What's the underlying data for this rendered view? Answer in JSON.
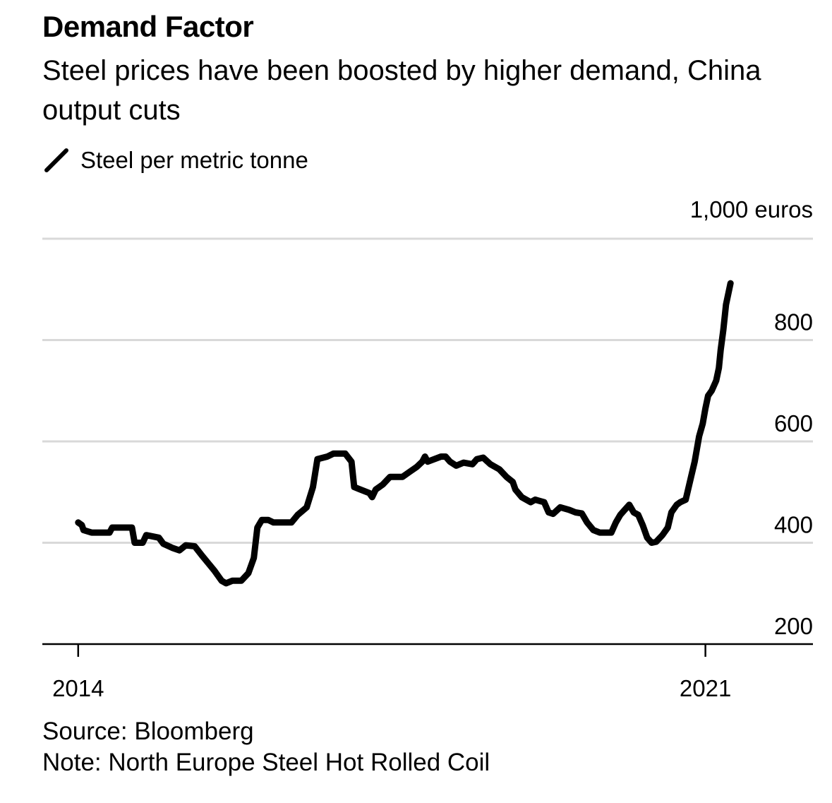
{
  "chart_data": {
    "type": "line",
    "title": "Demand Factor",
    "subtitle": "Steel prices have been boosted by higher demand, China output cuts",
    "legend": [
      "Steel per metric tonne"
    ],
    "xlabel": "",
    "ylabel": "",
    "unit_label": "1,000 euros",
    "yticks": [
      200,
      400,
      600,
      800,
      1000
    ],
    "ylim": [
      200,
      1000
    ],
    "xticks": [
      "2014",
      "2021"
    ],
    "xlim": [
      2013.6,
      2022.2
    ],
    "grid": true,
    "legend_position": "top-left",
    "series": [
      {
        "name": "Steel per metric tonne",
        "color": "#000000",
        "points": [
          [
            2014.0,
            440
          ],
          [
            2014.04,
            435
          ],
          [
            2014.06,
            425
          ],
          [
            2014.15,
            420
          ],
          [
            2014.35,
            420
          ],
          [
            2014.38,
            430
          ],
          [
            2014.6,
            430
          ],
          [
            2014.63,
            400
          ],
          [
            2014.72,
            400
          ],
          [
            2014.76,
            415
          ],
          [
            2014.9,
            410
          ],
          [
            2014.95,
            398
          ],
          [
            2015.05,
            390
          ],
          [
            2015.13,
            385
          ],
          [
            2015.2,
            395
          ],
          [
            2015.3,
            393
          ],
          [
            2015.38,
            375
          ],
          [
            2015.45,
            360
          ],
          [
            2015.52,
            345
          ],
          [
            2015.6,
            325
          ],
          [
            2015.65,
            320
          ],
          [
            2015.72,
            325
          ],
          [
            2015.82,
            325
          ],
          [
            2015.9,
            340
          ],
          [
            2015.96,
            370
          ],
          [
            2016.0,
            430
          ],
          [
            2016.05,
            445
          ],
          [
            2016.12,
            445
          ],
          [
            2016.18,
            440
          ],
          [
            2016.38,
            440
          ],
          [
            2016.45,
            455
          ],
          [
            2016.55,
            470
          ],
          [
            2016.62,
            510
          ],
          [
            2016.67,
            565
          ],
          [
            2016.78,
            570
          ],
          [
            2016.85,
            576
          ],
          [
            2016.98,
            576
          ],
          [
            2017.05,
            560
          ],
          [
            2017.08,
            510
          ],
          [
            2017.15,
            505
          ],
          [
            2017.25,
            498
          ],
          [
            2017.28,
            490
          ],
          [
            2017.32,
            505
          ],
          [
            2017.4,
            515
          ],
          [
            2017.48,
            530
          ],
          [
            2017.52,
            530
          ],
          [
            2017.62,
            530
          ],
          [
            2017.7,
            540
          ],
          [
            2017.78,
            550
          ],
          [
            2017.84,
            560
          ],
          [
            2017.87,
            570
          ],
          [
            2017.9,
            560
          ],
          [
            2018.05,
            570
          ],
          [
            2018.1,
            570
          ],
          [
            2018.15,
            560
          ],
          [
            2018.22,
            552
          ],
          [
            2018.3,
            558
          ],
          [
            2018.4,
            555
          ],
          [
            2018.45,
            565
          ],
          [
            2018.52,
            568
          ],
          [
            2018.6,
            555
          ],
          [
            2018.7,
            545
          ],
          [
            2018.78,
            530
          ],
          [
            2018.85,
            520
          ],
          [
            2018.88,
            505
          ],
          [
            2018.95,
            490
          ],
          [
            2019.05,
            480
          ],
          [
            2019.1,
            485
          ],
          [
            2019.2,
            480
          ],
          [
            2019.25,
            460
          ],
          [
            2019.3,
            457
          ],
          [
            2019.38,
            470
          ],
          [
            2019.48,
            465
          ],
          [
            2019.55,
            460
          ],
          [
            2019.62,
            458
          ],
          [
            2019.68,
            440
          ],
          [
            2019.75,
            425
          ],
          [
            2019.82,
            420
          ],
          [
            2019.95,
            420
          ],
          [
            2020.0,
            440
          ],
          [
            2020.05,
            455
          ],
          [
            2020.1,
            465
          ],
          [
            2020.15,
            475
          ],
          [
            2020.2,
            460
          ],
          [
            2020.25,
            455
          ],
          [
            2020.3,
            435
          ],
          [
            2020.35,
            410
          ],
          [
            2020.4,
            400
          ],
          [
            2020.45,
            402
          ],
          [
            2020.52,
            415
          ],
          [
            2020.58,
            430
          ],
          [
            2020.62,
            460
          ],
          [
            2020.68,
            475
          ],
          [
            2020.72,
            480
          ],
          [
            2020.78,
            485
          ],
          [
            2020.84,
            530
          ],
          [
            2020.88,
            560
          ],
          [
            2020.93,
            610
          ],
          [
            2020.97,
            635
          ],
          [
            2021.0,
            665
          ],
          [
            2021.03,
            690
          ],
          [
            2021.07,
            700
          ],
          [
            2021.12,
            720
          ],
          [
            2021.15,
            745
          ],
          [
            2021.17,
            780
          ],
          [
            2021.2,
            820
          ],
          [
            2021.23,
            870
          ],
          [
            2021.28,
            912
          ]
        ]
      }
    ]
  },
  "source": "Source: Bloomberg",
  "note": "Note: North Europe Steel Hot Rolled Coil"
}
